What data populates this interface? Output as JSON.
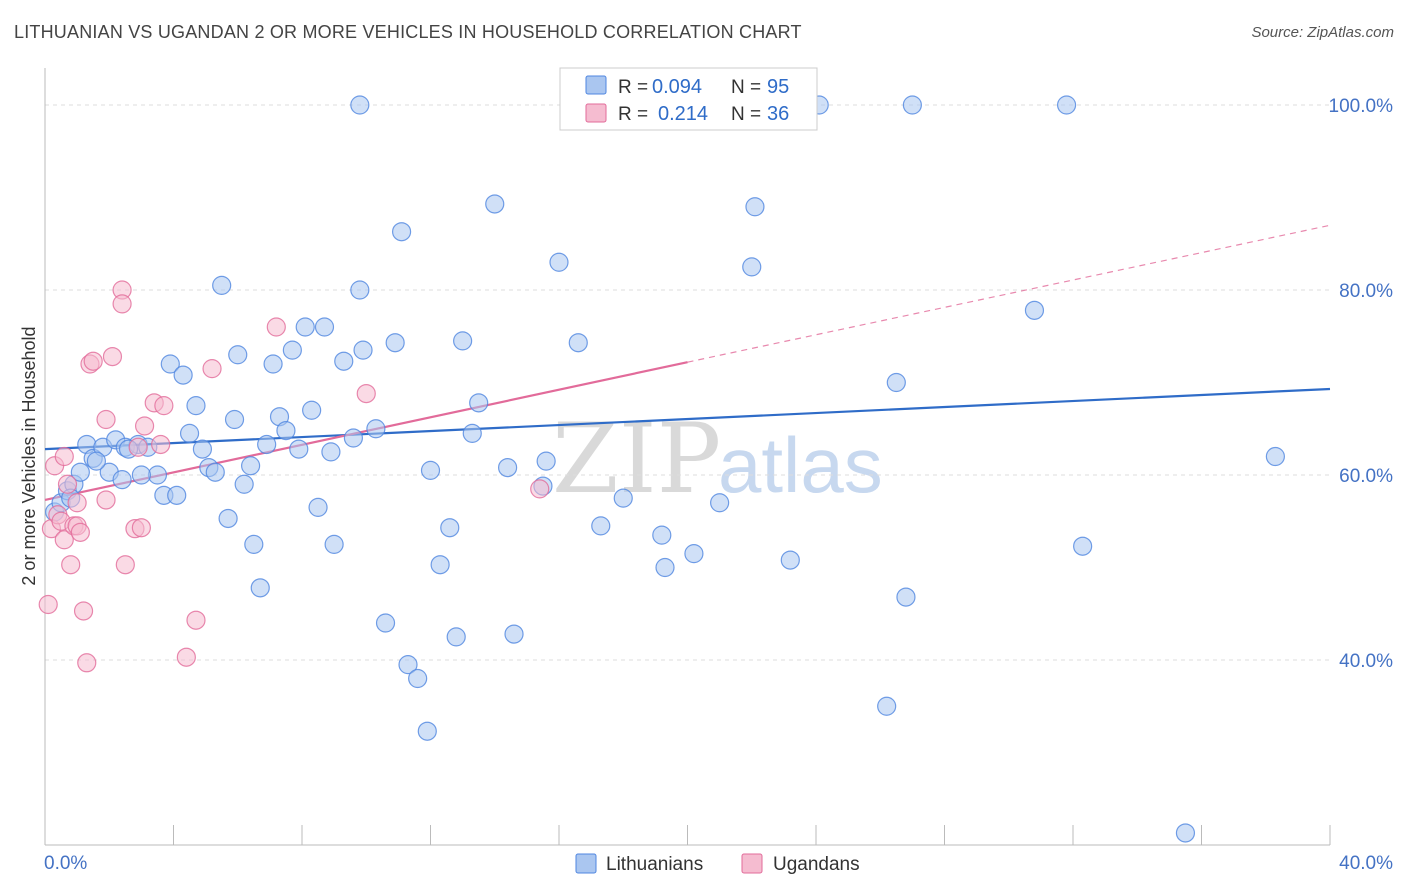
{
  "title": "LITHUANIAN VS UGANDAN 2 OR MORE VEHICLES IN HOUSEHOLD CORRELATION CHART",
  "source": "Source: ZipAtlas.com",
  "watermark": {
    "zip": "ZIP",
    "atlas": "atlas"
  },
  "colors": {
    "blue": "#4f86e0",
    "blue_fill": "#aac6f0",
    "pink": "#e26b9a",
    "pink_fill": "#f5bcd0",
    "tick_text": "#4472c4"
  },
  "legend": {
    "series": [
      {
        "r_label": "R =",
        "r_value": "0.094",
        "n_label": "N =",
        "n_value": "95"
      },
      {
        "r_label": "R =",
        "r_value": "0.214",
        "n_label": "N =",
        "n_value": "36"
      }
    ]
  },
  "chart_data": {
    "type": "scatter",
    "title": "LITHUANIAN VS UGANDAN 2 OR MORE VEHICLES IN HOUSEHOLD CORRELATION CHART",
    "xlabel": "",
    "ylabel": "2 or more Vehicles in Household",
    "xlim": [
      0,
      40
    ],
    "ylim": [
      20,
      104
    ],
    "x_tick_labels": [
      "0.0%",
      "40.0%"
    ],
    "y_ticks": [
      40,
      60,
      80,
      100
    ],
    "y_tick_labels": [
      "40.0%",
      "60.0%",
      "80.0%",
      "100.0%"
    ],
    "series": [
      {
        "name": "Lithuanians",
        "trend": {
          "x0": 0,
          "y0": 62.8,
          "x1": 40,
          "y1": 69.3,
          "dashed_to": null
        },
        "points": [
          [
            0.3,
            56.0
          ],
          [
            0.5,
            57.0
          ],
          [
            0.7,
            58.3
          ],
          [
            0.9,
            59.0
          ],
          [
            1.1,
            60.3
          ],
          [
            1.3,
            63.3
          ],
          [
            1.5,
            61.8
          ],
          [
            1.8,
            63.0
          ],
          [
            2.0,
            60.3
          ],
          [
            2.2,
            63.8
          ],
          [
            2.4,
            59.5
          ],
          [
            2.5,
            63.0
          ],
          [
            2.9,
            63.3
          ],
          [
            3.2,
            63.0
          ],
          [
            3.5,
            60.0
          ],
          [
            3.7,
            57.8
          ],
          [
            3.9,
            72.0
          ],
          [
            4.1,
            57.8
          ],
          [
            4.3,
            70.8
          ],
          [
            4.5,
            64.5
          ],
          [
            4.7,
            67.5
          ],
          [
            4.9,
            62.8
          ],
          [
            5.1,
            60.8
          ],
          [
            5.3,
            60.3
          ],
          [
            5.5,
            80.5
          ],
          [
            5.7,
            55.3
          ],
          [
            5.9,
            66.0
          ],
          [
            6.0,
            73.0
          ],
          [
            6.2,
            59.0
          ],
          [
            6.5,
            52.5
          ],
          [
            6.7,
            47.8
          ],
          [
            6.9,
            63.3
          ],
          [
            7.1,
            72.0
          ],
          [
            7.3,
            66.3
          ],
          [
            7.5,
            64.8
          ],
          [
            7.7,
            73.5
          ],
          [
            7.9,
            62.8
          ],
          [
            8.1,
            76.0
          ],
          [
            8.3,
            67.0
          ],
          [
            8.5,
            56.5
          ],
          [
            8.7,
            76.0
          ],
          [
            8.9,
            62.5
          ],
          [
            9.0,
            52.5
          ],
          [
            9.3,
            72.3
          ],
          [
            9.6,
            64.0
          ],
          [
            9.8,
            80.0
          ],
          [
            9.9,
            73.5
          ],
          [
            10.3,
            65.0
          ],
          [
            9.8,
            100.0
          ],
          [
            10.6,
            44.0
          ],
          [
            10.9,
            74.3
          ],
          [
            11.1,
            86.3
          ],
          [
            11.3,
            39.5
          ],
          [
            11.6,
            38.0
          ],
          [
            11.9,
            32.3
          ],
          [
            12.3,
            50.3
          ],
          [
            12.6,
            54.3
          ],
          [
            12.8,
            42.5
          ],
          [
            13.0,
            74.5
          ],
          [
            13.3,
            64.5
          ],
          [
            13.5,
            67.8
          ],
          [
            14.0,
            89.3
          ],
          [
            14.4,
            60.8
          ],
          [
            14.6,
            42.8
          ],
          [
            15.5,
            58.8
          ],
          [
            15.6,
            61.5
          ],
          [
            16.0,
            83.0
          ],
          [
            16.6,
            74.3
          ],
          [
            17.3,
            54.5
          ],
          [
            17.8,
            100.0
          ],
          [
            18.0,
            57.5
          ],
          [
            18.5,
            100.0
          ],
          [
            19.2,
            53.5
          ],
          [
            19.3,
            50.0
          ],
          [
            20.2,
            51.5
          ],
          [
            21.0,
            57.0
          ],
          [
            22.0,
            82.5
          ],
          [
            22.1,
            89.0
          ],
          [
            23.2,
            50.8
          ],
          [
            24.1,
            100.0
          ],
          [
            26.5,
            70.0
          ],
          [
            26.8,
            46.8
          ],
          [
            26.2,
            35.0
          ],
          [
            27.0,
            100.0
          ],
          [
            30.8,
            77.8
          ],
          [
            31.8,
            100.0
          ],
          [
            32.3,
            52.3
          ],
          [
            35.5,
            21.3
          ],
          [
            38.3,
            62.0
          ],
          [
            0.8,
            57.5
          ],
          [
            1.6,
            61.5
          ],
          [
            2.6,
            62.8
          ],
          [
            3.0,
            60.0
          ],
          [
            6.4,
            61.0
          ],
          [
            12.0,
            60.5
          ]
        ]
      },
      {
        "name": "Ugandans",
        "trend": {
          "x0": 0,
          "y0": 57.3,
          "x1": 20,
          "y1": 72.2,
          "dashed_to": [
            40,
            87.0
          ]
        },
        "points": [
          [
            0.1,
            46.0
          ],
          [
            0.2,
            54.2
          ],
          [
            0.3,
            61.0
          ],
          [
            0.4,
            55.7
          ],
          [
            0.5,
            55.0
          ],
          [
            0.6,
            62.0
          ],
          [
            0.6,
            53.0
          ],
          [
            0.7,
            59.0
          ],
          [
            0.8,
            50.3
          ],
          [
            0.9,
            54.5
          ],
          [
            1.0,
            57.0
          ],
          [
            1.0,
            54.5
          ],
          [
            1.1,
            53.8
          ],
          [
            1.2,
            45.3
          ],
          [
            1.3,
            39.7
          ],
          [
            1.4,
            72.0
          ],
          [
            1.5,
            72.3
          ],
          [
            1.9,
            57.3
          ],
          [
            1.9,
            66.0
          ],
          [
            2.1,
            72.8
          ],
          [
            2.4,
            80.0
          ],
          [
            2.4,
            78.5
          ],
          [
            2.5,
            50.3
          ],
          [
            2.8,
            54.2
          ],
          [
            3.0,
            54.3
          ],
          [
            3.1,
            65.3
          ],
          [
            3.4,
            67.8
          ],
          [
            3.6,
            63.3
          ],
          [
            3.7,
            67.5
          ],
          [
            4.4,
            40.3
          ],
          [
            4.7,
            44.3
          ],
          [
            5.2,
            71.5
          ],
          [
            7.2,
            76.0
          ],
          [
            10.0,
            68.8
          ],
          [
            15.4,
            58.5
          ],
          [
            2.9,
            63.0
          ]
        ]
      }
    ],
    "legend_position": "top-center",
    "bottom_legend": [
      "Lithuanians",
      "Ugandans"
    ]
  }
}
